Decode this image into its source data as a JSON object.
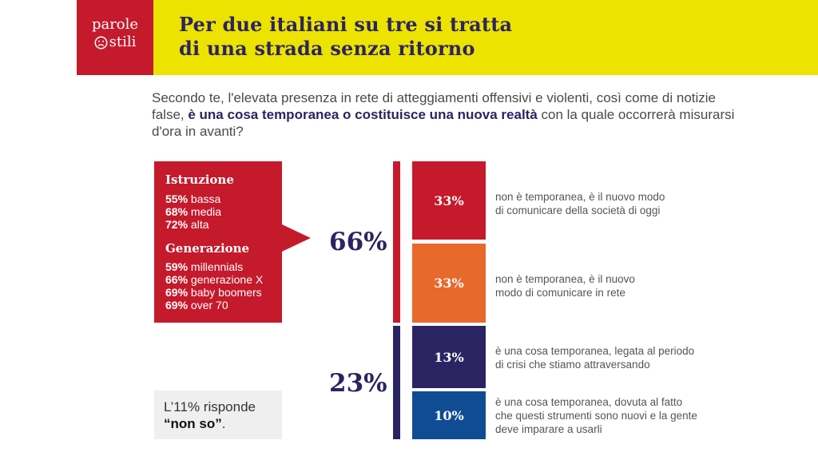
{
  "header": {
    "logo_line1": "parole",
    "logo_line2": "stili",
    "logo_icon": "sad-face-icon",
    "title_line1": "Per due italiani su tre si tratta",
    "title_line2": "di una strada senza ritorno",
    "colors": {
      "logo_bg": "#c41a2c",
      "title_bg": "#ece300",
      "title_text": "#2b2462"
    }
  },
  "question": {
    "part1": "Secondo te, l'elevata presenza in rete di atteggiamenti offensivi e violenti, così come di notizie false, ",
    "bold": "è una cosa temporanea o costituisce una nuova realtà",
    "part2": " con la quale occorrerà misurarsi d'ora in avanti?"
  },
  "callout": {
    "sections": [
      {
        "title": "Istruzione",
        "rows": [
          {
            "pct": "55%",
            "label": "bassa"
          },
          {
            "pct": "68%",
            "label": "media"
          },
          {
            "pct": "72%",
            "label": "alta"
          }
        ]
      },
      {
        "title": "Generazione",
        "rows": [
          {
            "pct": "59%",
            "label": "millennials"
          },
          {
            "pct": "66%",
            "label": "generazione X"
          },
          {
            "pct": "69%",
            "label": "baby boomers"
          },
          {
            "pct": "69%",
            "label": "over 70"
          }
        ]
      }
    ]
  },
  "note": {
    "prefix": "L’11% risponde",
    "bold": "“non so”",
    "suffix": "."
  },
  "chart_data": {
    "type": "bar",
    "title": "Per due italiani su tre si tratta di una strada senza ritorno",
    "groups": [
      {
        "total_label": "66%",
        "total": 66,
        "color": "#c41a2c",
        "items": [
          {
            "label": "33%",
            "value": 33,
            "color": "#c41a2c",
            "text": [
              "non è temporanea, è il nuovo modo",
              "di comunicare della società di oggi"
            ]
          },
          {
            "label": "33%",
            "value": 33,
            "color": "#e8692c",
            "text": [
              "non è temporanea, è il nuovo",
              "modo di comunicare in rete"
            ]
          }
        ]
      },
      {
        "total_label": "23%",
        "total": 23,
        "color": "#2b2462",
        "items": [
          {
            "label": "13%",
            "value": 13,
            "color": "#2b2462",
            "text": [
              "è una cosa temporanea, legata al periodo",
              "di crisi che stiamo attraversando"
            ]
          },
          {
            "label": "10%",
            "value": 10,
            "color": "#0f4c94",
            "text": [
              "è una cosa temporanea, dovuta al fatto",
              "che questi strumenti sono nuovi e la gente",
              "deve imparare a usarli"
            ]
          }
        ]
      }
    ]
  }
}
